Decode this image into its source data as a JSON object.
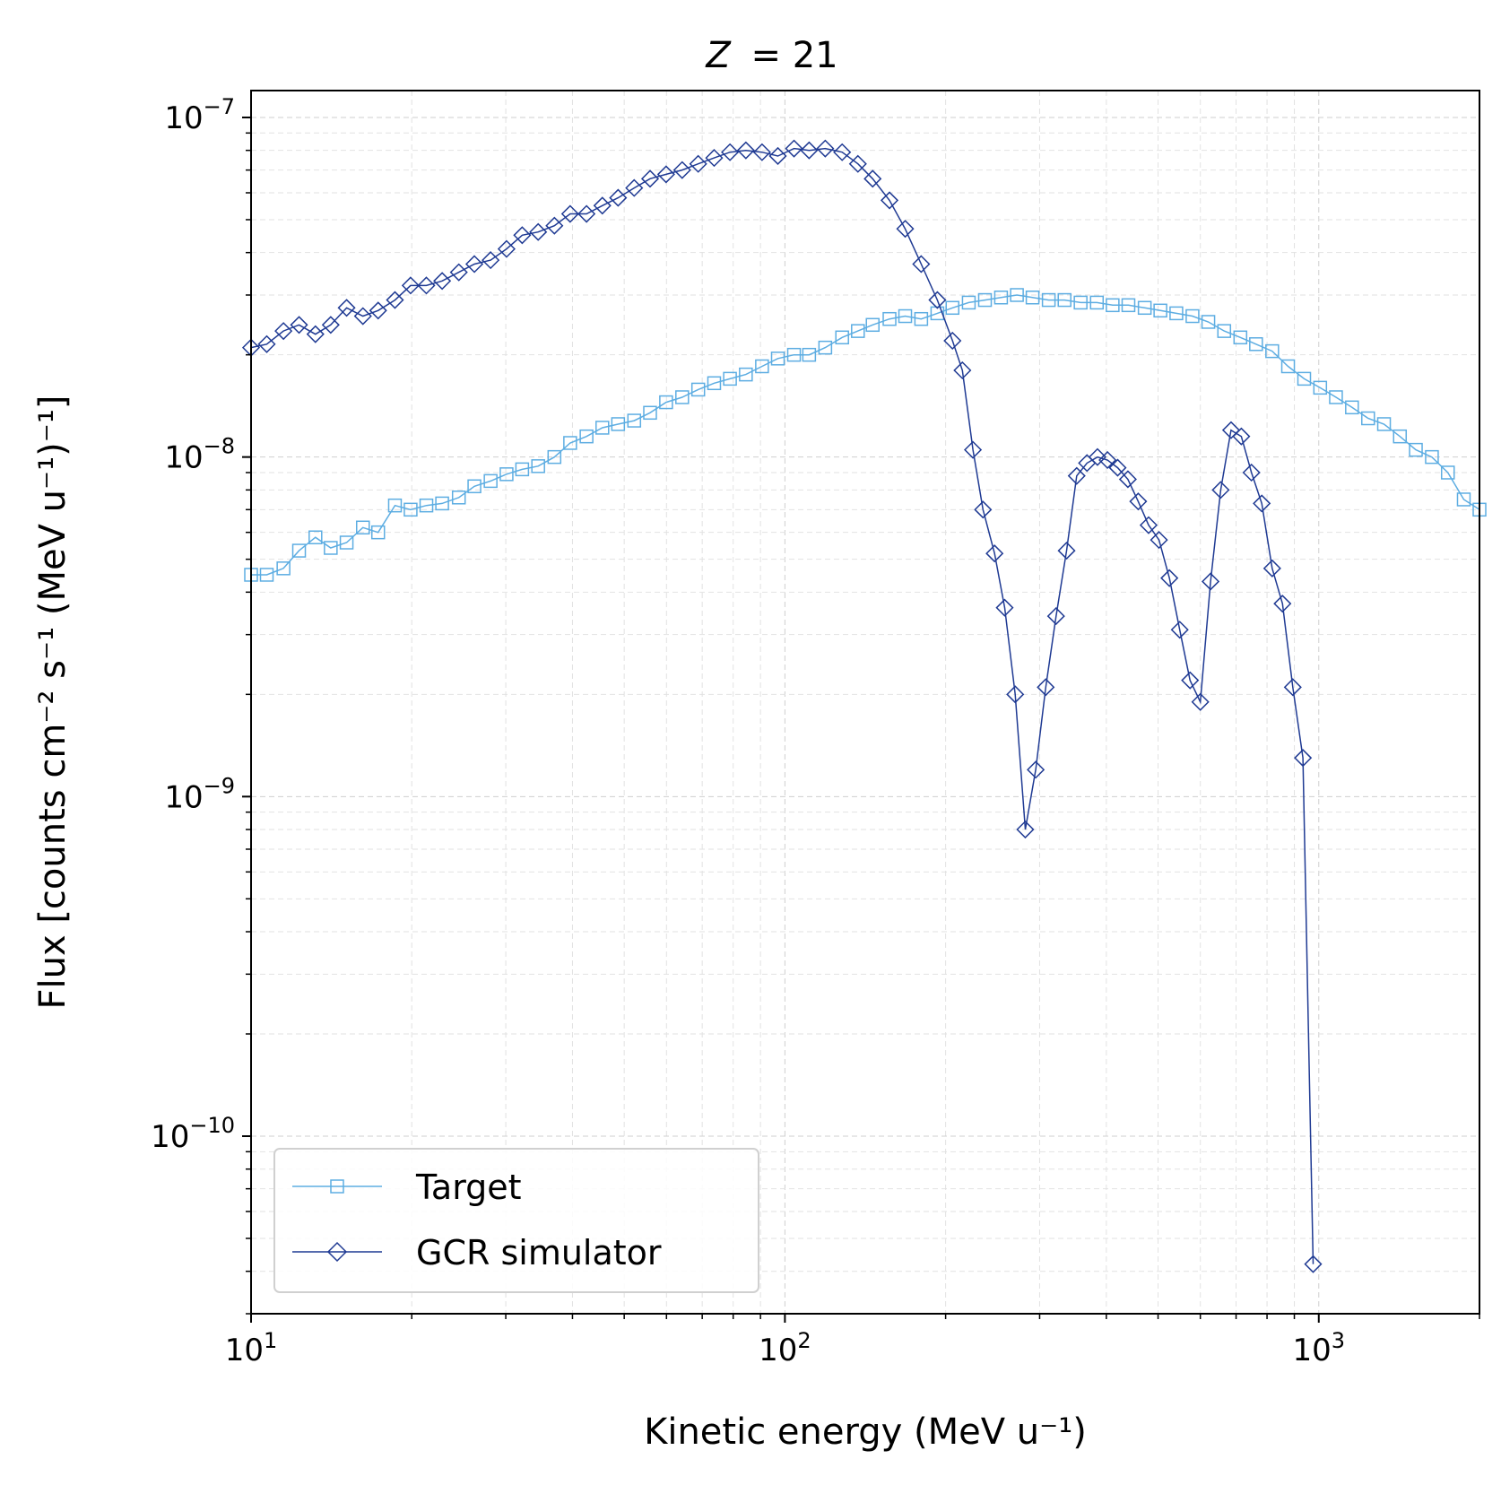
{
  "chart_data": {
    "type": "line",
    "title_prefix": "Z",
    "title": "Z = 21",
    "title_value": "= 21",
    "xlabel": "Kinetic energy (MeV u⁻¹)",
    "ylabel": "Flux [counts cm⁻² s⁻¹ (MeV u⁻¹)⁻¹]",
    "xscale": "log",
    "yscale": "log",
    "xlim": [
      10,
      2000
    ],
    "ylim": [
      3e-11,
      1.2e-07
    ],
    "grid": true,
    "legend_position": "lower-left",
    "x_tick_labels": [
      {
        "value": 10,
        "base": "10",
        "exp": "1"
      },
      {
        "value": 100,
        "base": "10",
        "exp": "2"
      },
      {
        "value": 1000,
        "base": "10",
        "exp": "3"
      }
    ],
    "y_tick_labels": [
      {
        "value": 1e-10,
        "base": "10",
        "exp": "−10"
      },
      {
        "value": 1e-09,
        "base": "10",
        "exp": "−9"
      },
      {
        "value": 1e-08,
        "base": "10",
        "exp": "−8"
      },
      {
        "value": 1e-07,
        "base": "10",
        "exp": "−7"
      }
    ],
    "series": [
      {
        "name": "Target",
        "color": "#5dade2",
        "marker": "square",
        "x": [
          10,
          10.7,
          11.5,
          12.3,
          13.2,
          14.1,
          15.1,
          16.2,
          17.3,
          18.6,
          19.9,
          21.3,
          22.8,
          24.5,
          26.2,
          28.1,
          30.1,
          32.2,
          34.5,
          37,
          39.6,
          42.5,
          45.5,
          48.7,
          52.2,
          55.9,
          59.9,
          64.2,
          68.8,
          73.7,
          78.9,
          84.5,
          90.6,
          97,
          104,
          111,
          119,
          128,
          137,
          146,
          157,
          168,
          180,
          193,
          206,
          221,
          237,
          254,
          272,
          291,
          312,
          334,
          358,
          384,
          411,
          440,
          472,
          505,
          541,
          580,
          621,
          665,
          713,
          763,
          818,
          876,
          939,
          1006,
          1077,
          1154,
          1237,
          1325,
          1419,
          1520,
          1629,
          1745,
          1869,
          2000
        ],
        "y": [
          4.5e-09,
          4.5e-09,
          4.7e-09,
          5.3e-09,
          5.8e-09,
          5.4e-09,
          5.6e-09,
          6.2e-09,
          6e-09,
          7.2e-09,
          7e-09,
          7.2e-09,
          7.3e-09,
          7.6e-09,
          8.2e-09,
          8.5e-09,
          8.9e-09,
          9.2e-09,
          9.4e-09,
          1e-08,
          1.1e-08,
          1.15e-08,
          1.22e-08,
          1.25e-08,
          1.28e-08,
          1.35e-08,
          1.45e-08,
          1.5e-08,
          1.58e-08,
          1.65e-08,
          1.7e-08,
          1.75e-08,
          1.85e-08,
          1.95e-08,
          2e-08,
          2e-08,
          2.1e-08,
          2.25e-08,
          2.35e-08,
          2.45e-08,
          2.55e-08,
          2.6e-08,
          2.55e-08,
          2.65e-08,
          2.75e-08,
          2.85e-08,
          2.9e-08,
          2.95e-08,
          3e-08,
          2.95e-08,
          2.9e-08,
          2.9e-08,
          2.85e-08,
          2.85e-08,
          2.8e-08,
          2.8e-08,
          2.75e-08,
          2.7e-08,
          2.65e-08,
          2.6e-08,
          2.5e-08,
          2.35e-08,
          2.25e-08,
          2.15e-08,
          2.05e-08,
          1.85e-08,
          1.7e-08,
          1.6e-08,
          1.5e-08,
          1.4e-08,
          1.3e-08,
          1.25e-08,
          1.15e-08,
          1.05e-08,
          1e-08,
          9e-09,
          7.5e-09,
          7e-09
        ]
      },
      {
        "name": "GCR simulator",
        "color": "#1f3a93",
        "marker": "diamond",
        "x": [
          10,
          10.7,
          11.5,
          12.3,
          13.2,
          14.1,
          15.1,
          16.2,
          17.3,
          18.6,
          19.9,
          21.3,
          22.8,
          24.5,
          26.2,
          28.1,
          30.1,
          32.2,
          34.5,
          37,
          39.6,
          42.5,
          45.5,
          48.7,
          52.2,
          55.9,
          59.9,
          64.2,
          68.8,
          73.7,
          78.9,
          84.5,
          90.6,
          97,
          104,
          111,
          119,
          128,
          137,
          146,
          157,
          168,
          180,
          193,
          206,
          215,
          225,
          235,
          247,
          258,
          270,
          282,
          295,
          308,
          322,
          337,
          352,
          368,
          385,
          402,
          420,
          439,
          459,
          480,
          502,
          525,
          549,
          574,
          600,
          627,
          655,
          685,
          716,
          748,
          782,
          818,
          855,
          894,
          934,
          976
        ],
        "y": [
          2.1e-08,
          2.15e-08,
          2.35e-08,
          2.45e-08,
          2.3e-08,
          2.45e-08,
          2.75e-08,
          2.6e-08,
          2.7e-08,
          2.9e-08,
          3.2e-08,
          3.2e-08,
          3.3e-08,
          3.5e-08,
          3.7e-08,
          3.8e-08,
          4.1e-08,
          4.5e-08,
          4.6e-08,
          4.8e-08,
          5.2e-08,
          5.2e-08,
          5.5e-08,
          5.8e-08,
          6.2e-08,
          6.6e-08,
          6.8e-08,
          7e-08,
          7.3e-08,
          7.6e-08,
          7.9e-08,
          8e-08,
          7.9e-08,
          7.7e-08,
          8.1e-08,
          8e-08,
          8.1e-08,
          7.9e-08,
          7.3e-08,
          6.6e-08,
          5.7e-08,
          4.7e-08,
          3.7e-08,
          2.9e-08,
          2.2e-08,
          1.8e-08,
          1.05e-08,
          7e-09,
          5.2e-09,
          3.6e-09,
          2e-09,
          8e-10,
          1.2e-09,
          2.1e-09,
          3.4e-09,
          5.3e-09,
          8.8e-09,
          9.6e-09,
          1e-08,
          9.8e-09,
          9.3e-09,
          8.6e-09,
          7.4e-09,
          6.3e-09,
          5.7e-09,
          4.4e-09,
          3.1e-09,
          2.2e-09,
          1.9e-09,
          4.3e-09,
          8e-09,
          1.2e-08,
          1.15e-08,
          9e-09,
          7.3e-09,
          4.7e-09,
          3.7e-09,
          2.1e-09,
          1.3e-09,
          4.2e-11
        ]
      }
    ]
  }
}
